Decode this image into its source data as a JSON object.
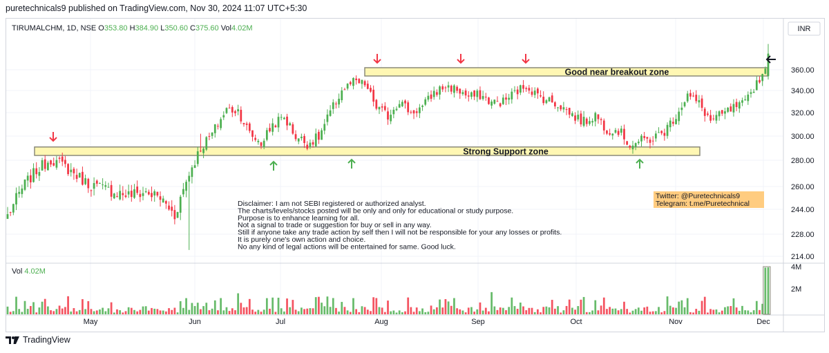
{
  "header": {
    "published_line": "puretechnicals9 published on TradingView.com, Nov 30, 2024 11:07 UTC+5:30"
  },
  "footer": {
    "brand": "TradingView"
  },
  "ohlc_legend": {
    "symbol": "TIRUMALCHM, 1D, NSE",
    "o_label": "O",
    "o": "353.80",
    "h_label": "H",
    "h": "384.90",
    "l_label": "L",
    "l": "350.60",
    "c_label": "C",
    "c": "375.60",
    "vol_label": "Vol",
    "vol": "4.02M"
  },
  "currency": "INR",
  "volume_legend": {
    "label": "Vol",
    "value": "4.02M"
  },
  "annotations": {
    "resistance_zone": "Good near breakout zone",
    "support_zone": "Strong Support zone",
    "disclaimer": [
      "Disclaimer: I am not SEBI registered or authorized analyst.",
      "The charts/levels/stocks posted will be only and only for educational or study purpose.",
      "Purpose is to enhance learning for all.",
      "Not a signal to trade or suggestion for buy or sell in any way.",
      "Still if anyone take any trade action by self then I will not be responsible for your any losses or profits.",
      "It is purely one's own action and choice.",
      "No any kind of legal actions will be entertained for same. Good luck."
    ],
    "contact": [
      "Twitter: @Puretechnicals9",
      "Telegram: t.me/Puretechnical"
    ]
  },
  "colors": {
    "up": "#4caf50",
    "down": "#f23645",
    "zone_fill": "#fff7b3",
    "zone_border": "#8a8a7a",
    "contact_bg": "#ffcc80",
    "grid": "#f0f3fa"
  },
  "chart_data": {
    "type": "candlestick",
    "symbol": "TIRUMALCHM",
    "interval": "1D",
    "exchange": "NSE",
    "x_labels": [
      "May",
      "Jun",
      "Jul",
      "Aug",
      "Sep",
      "Oct",
      "Nov",
      "Dec"
    ],
    "y_ticks": [
      214,
      228,
      244,
      260,
      280,
      300,
      320,
      340,
      360
    ],
    "y_tick_labels": [
      "214.00",
      "228.00",
      "244.00",
      "260.00",
      "280.00",
      "300.00",
      "320.00",
      "340.00",
      "360.00"
    ],
    "volume_ticks": [
      "2M",
      "4M"
    ],
    "zones": [
      {
        "label": "Good near breakout zone",
        "low": 354,
        "high": 362
      },
      {
        "label": "Strong Support zone",
        "low": 284,
        "high": 291
      }
    ],
    "waypoints": [
      [
        0,
        240
      ],
      [
        6,
        262
      ],
      [
        10,
        272
      ],
      [
        15,
        281
      ],
      [
        20,
        275
      ],
      [
        28,
        262
      ],
      [
        34,
        258
      ],
      [
        42,
        254
      ],
      [
        48,
        256
      ],
      [
        53,
        252
      ],
      [
        58,
        240
      ],
      [
        63,
        270
      ],
      [
        67,
        290
      ],
      [
        71,
        302
      ],
      [
        76,
        323
      ],
      [
        80,
        322
      ],
      [
        84,
        302
      ],
      [
        88,
        294
      ],
      [
        92,
        310
      ],
      [
        96,
        316
      ],
      [
        100,
        300
      ],
      [
        104,
        294
      ],
      [
        108,
        299
      ],
      [
        112,
        320
      ],
      [
        116,
        340
      ],
      [
        120,
        348
      ],
      [
        124,
        346
      ],
      [
        128,
        325
      ],
      [
        132,
        317
      ],
      [
        136,
        331
      ],
      [
        140,
        320
      ],
      [
        144,
        325
      ],
      [
        148,
        338
      ],
      [
        152,
        344
      ],
      [
        156,
        341
      ],
      [
        160,
        334
      ],
      [
        164,
        336
      ],
      [
        168,
        329
      ],
      [
        172,
        330
      ],
      [
        176,
        338
      ],
      [
        180,
        345
      ],
      [
        184,
        335
      ],
      [
        188,
        331
      ],
      [
        192,
        326
      ],
      [
        196,
        318
      ],
      [
        200,
        312
      ],
      [
        204,
        318
      ],
      [
        208,
        306
      ],
      [
        212,
        305
      ],
      [
        216,
        293
      ],
      [
        220,
        296
      ],
      [
        224,
        298
      ],
      [
        228,
        304
      ],
      [
        232,
        318
      ],
      [
        236,
        336
      ],
      [
        240,
        328
      ],
      [
        244,
        313
      ],
      [
        248,
        318
      ],
      [
        252,
        324
      ],
      [
        256,
        328
      ],
      [
        260,
        348
      ],
      [
        262,
        355
      ],
      [
        264,
        375.6
      ]
    ],
    "current": {
      "open": 353.8,
      "high": 384.9,
      "low": 350.6,
      "close": 375.6,
      "volume": "4.02M"
    }
  }
}
